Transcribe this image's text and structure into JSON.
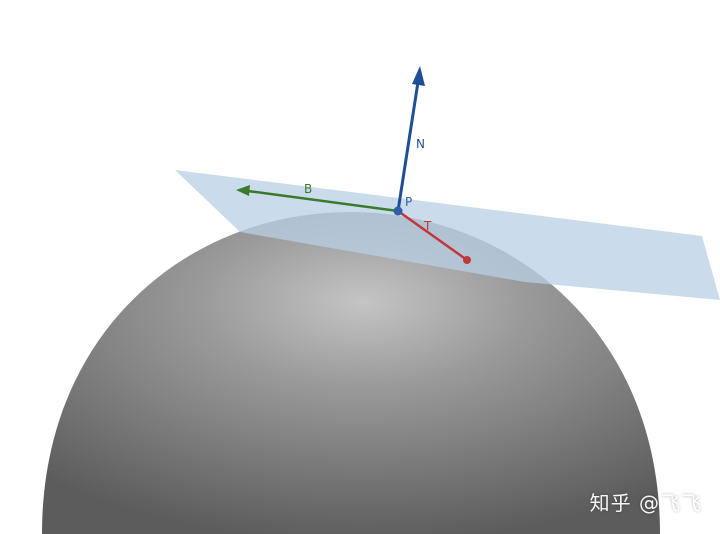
{
  "diagram": {
    "labels": {
      "normal": "N",
      "binormal": "B",
      "tangent": "T",
      "point": "P"
    },
    "colors": {
      "normal": "#1f4e96",
      "binormal": "#3a7a2a",
      "tangent": "#c0383a",
      "point": "#2f5fa8",
      "plane": "#b8cfe6",
      "sphere": "#8a8a8a"
    }
  },
  "watermark": {
    "text": "知乎 @飞飞"
  }
}
